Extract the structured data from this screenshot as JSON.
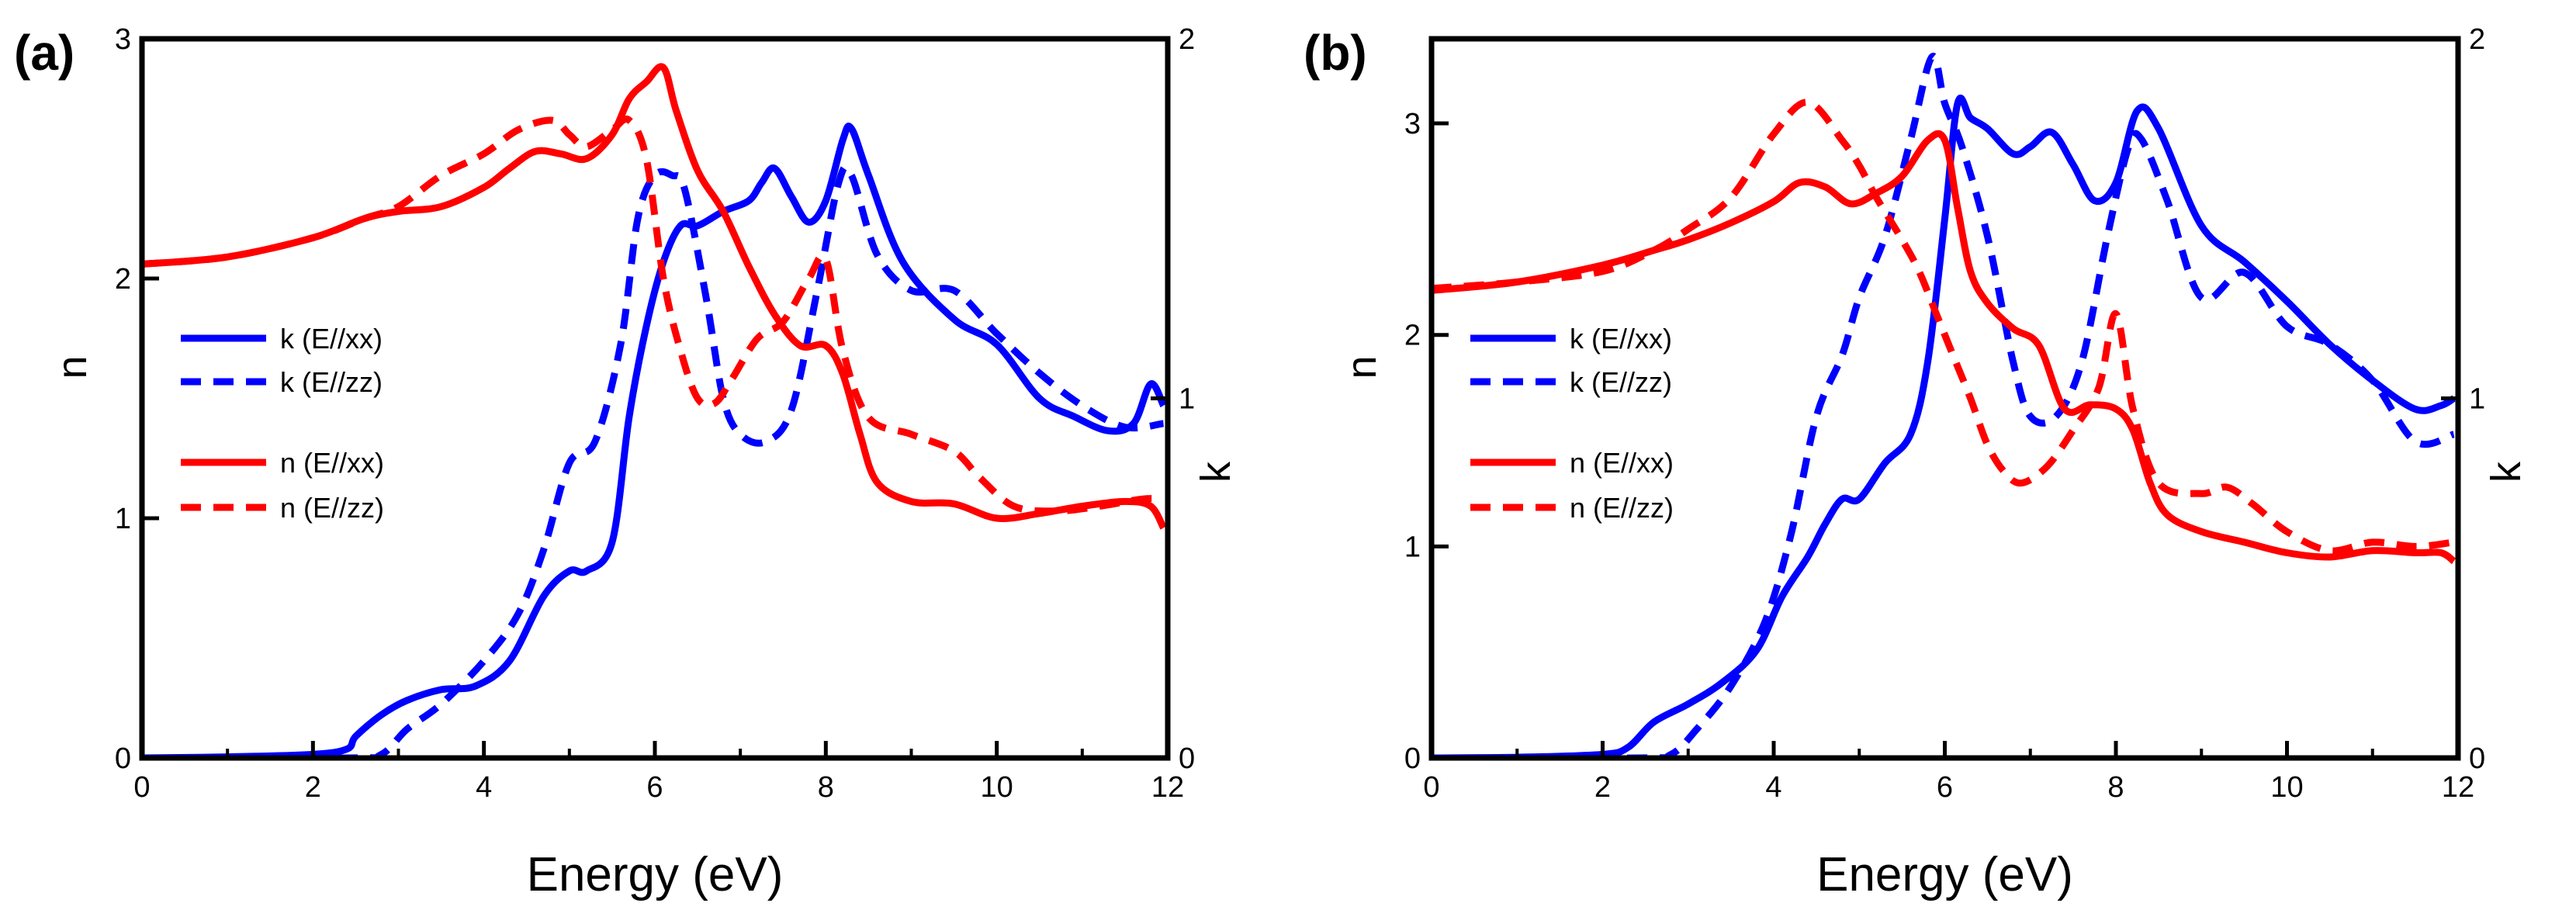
{
  "chart_data": [
    {
      "type": "line",
      "panel_label": "(a)",
      "xlabel": "Energy (eV)",
      "ylabel_left": "n",
      "ylabel_right": "k",
      "xlim": [
        0,
        12
      ],
      "ylim_left": [
        0,
        3
      ],
      "ylim_right": [
        0,
        2
      ],
      "xticks": [
        0,
        2,
        4,
        6,
        8,
        10,
        12
      ],
      "yticks_left": [
        0,
        1,
        2,
        3
      ],
      "yticks_right": [
        0,
        1,
        2
      ],
      "legend_position": "left",
      "series": [
        {
          "name": "k (E//xx)",
          "color": "#0000ff",
          "dash": "solid",
          "axis": "right",
          "x": [
            0,
            1,
            2,
            2.4,
            2.5,
            2.8,
            3.1,
            3.5,
            3.9,
            4.3,
            4.7,
            5.0,
            5.2,
            5.5,
            5.7,
            5.9,
            6.1,
            6.3,
            6.5,
            6.8,
            7.1,
            7.25,
            7.4,
            7.6,
            7.8,
            8.0,
            8.2,
            8.3,
            8.5,
            8.9,
            9.5,
            10.0,
            10.5,
            10.9,
            11.3,
            11.6,
            11.8,
            11.95
          ],
          "y": [
            0,
            0.003,
            0.01,
            0.025,
            0.06,
            0.12,
            0.16,
            0.19,
            0.2,
            0.27,
            0.45,
            0.52,
            0.52,
            0.6,
            0.95,
            1.2,
            1.38,
            1.48,
            1.48,
            1.52,
            1.55,
            1.6,
            1.64,
            1.56,
            1.49,
            1.55,
            1.72,
            1.75,
            1.62,
            1.38,
            1.22,
            1.15,
            1.0,
            0.95,
            0.91,
            0.93,
            1.04,
            0.98
          ]
        },
        {
          "name": "k (E//zz)",
          "color": "#0000ff",
          "dash": "dashed",
          "axis": "right",
          "x": [
            0,
            2.4,
            2.8,
            3.1,
            3.5,
            4.0,
            4.4,
            4.7,
            5.0,
            5.3,
            5.6,
            5.8,
            6.0,
            6.2,
            6.35,
            6.6,
            6.8,
            7.0,
            7.3,
            7.6,
            7.9,
            8.15,
            8.3,
            8.6,
            9.0,
            9.5,
            10.0,
            10.5,
            11.0,
            11.5,
            11.95
          ],
          "y": [
            0,
            0,
            0.01,
            0.08,
            0.15,
            0.27,
            0.4,
            0.58,
            0.82,
            0.88,
            1.15,
            1.5,
            1.62,
            1.62,
            1.58,
            1.28,
            1.0,
            0.9,
            0.88,
            0.97,
            1.3,
            1.6,
            1.62,
            1.4,
            1.3,
            1.3,
            1.18,
            1.07,
            0.98,
            0.92,
            0.93
          ]
        },
        {
          "name": "n (E//xx)",
          "color": "#ff0000",
          "dash": "solid",
          "axis": "left",
          "x": [
            0,
            1,
            2,
            2.6,
            3.0,
            3.5,
            4.0,
            4.3,
            4.6,
            4.9,
            5.2,
            5.5,
            5.7,
            5.9,
            6.1,
            6.25,
            6.5,
            6.8,
            7.1,
            7.4,
            7.7,
            8.0,
            8.2,
            8.4,
            8.6,
            9.0,
            9.5,
            10.0,
            10.5,
            11.0,
            11.5,
            11.8,
            11.95
          ],
          "y": [
            2.06,
            2.09,
            2.17,
            2.25,
            2.28,
            2.3,
            2.38,
            2.46,
            2.53,
            2.52,
            2.5,
            2.6,
            2.75,
            2.82,
            2.88,
            2.7,
            2.45,
            2.28,
            2.05,
            1.85,
            1.72,
            1.72,
            1.6,
            1.35,
            1.15,
            1.07,
            1.06,
            1.0,
            1.02,
            1.05,
            1.07,
            1.05,
            0.96
          ]
        },
        {
          "name": "n (E//zz)",
          "color": "#ff0000",
          "dash": "dashed",
          "axis": "left",
          "x": [
            0,
            1,
            2,
            2.6,
            3.0,
            3.5,
            4.0,
            4.4,
            4.8,
            5.0,
            5.2,
            5.5,
            5.7,
            5.9,
            6.1,
            6.3,
            6.5,
            6.7,
            6.9,
            7.2,
            7.5,
            7.8,
            8.0,
            8.2,
            8.5,
            9.0,
            9.5,
            9.8,
            10.2,
            10.7,
            11.2,
            11.7,
            11.95
          ],
          "y": [
            2.06,
            2.09,
            2.17,
            2.25,
            2.3,
            2.43,
            2.52,
            2.62,
            2.66,
            2.6,
            2.55,
            2.62,
            2.66,
            2.5,
            2.0,
            1.7,
            1.5,
            1.48,
            1.58,
            1.75,
            1.82,
            2.0,
            2.08,
            1.7,
            1.42,
            1.35,
            1.28,
            1.17,
            1.05,
            1.03,
            1.05,
            1.08,
            1.08
          ]
        }
      ]
    },
    {
      "type": "line",
      "panel_label": "(b)",
      "xlabel": "Energy (eV)",
      "ylabel_left": "n",
      "ylabel_right": "k",
      "xlim": [
        0,
        12
      ],
      "ylim_left": [
        0,
        3.4
      ],
      "ylim_right": [
        0,
        2
      ],
      "xticks": [
        0,
        2,
        4,
        6,
        8,
        10,
        12
      ],
      "yticks_left": [
        0,
        1,
        2,
        3
      ],
      "yticks_right": [
        0,
        1,
        2
      ],
      "legend_position": "left",
      "series": [
        {
          "name": "k (E//xx)",
          "color": "#0000ff",
          "dash": "solid",
          "axis": "right",
          "x": [
            0,
            1,
            2,
            2.3,
            2.6,
            3.0,
            3.4,
            3.8,
            4.1,
            4.4,
            4.6,
            4.8,
            5.0,
            5.3,
            5.6,
            5.8,
            6.0,
            6.15,
            6.3,
            6.5,
            6.8,
            7.0,
            7.25,
            7.5,
            7.75,
            8.0,
            8.25,
            8.5,
            9.0,
            9.5,
            10.0,
            10.5,
            11.0,
            11.5,
            11.8,
            11.95
          ],
          "y": [
            0,
            0.002,
            0.01,
            0.03,
            0.1,
            0.15,
            0.21,
            0.3,
            0.45,
            0.56,
            0.65,
            0.72,
            0.72,
            0.82,
            0.9,
            1.1,
            1.5,
            1.82,
            1.78,
            1.75,
            1.68,
            1.7,
            1.74,
            1.65,
            1.55,
            1.6,
            1.8,
            1.75,
            1.48,
            1.38,
            1.27,
            1.15,
            1.05,
            0.97,
            0.98,
            1.0
          ]
        },
        {
          "name": "k (E//zz)",
          "color": "#0000ff",
          "dash": "dashed",
          "axis": "right",
          "x": [
            0,
            2.4,
            2.8,
            3.1,
            3.5,
            3.9,
            4.2,
            4.5,
            4.8,
            5.0,
            5.3,
            5.6,
            5.85,
            6.0,
            6.2,
            6.5,
            6.8,
            7.0,
            7.3,
            7.6,
            7.9,
            8.15,
            8.3,
            8.6,
            9.0,
            9.5,
            10.0,
            10.5,
            11.0,
            11.5,
            11.95
          ],
          "y": [
            0,
            0,
            0.01,
            0.08,
            0.2,
            0.38,
            0.62,
            0.95,
            1.12,
            1.28,
            1.45,
            1.72,
            1.95,
            1.82,
            1.7,
            1.45,
            1.1,
            0.95,
            0.95,
            1.1,
            1.45,
            1.7,
            1.72,
            1.55,
            1.28,
            1.35,
            1.2,
            1.15,
            1.05,
            0.88,
            0.9
          ]
        },
        {
          "name": "n (E//xx)",
          "color": "#ff0000",
          "dash": "solid",
          "axis": "left",
          "x": [
            0,
            1,
            2,
            2.6,
            3.0,
            3.5,
            4.0,
            4.3,
            4.6,
            4.9,
            5.2,
            5.5,
            5.8,
            6.0,
            6.15,
            6.3,
            6.5,
            6.8,
            7.1,
            7.4,
            7.7,
            8.0,
            8.2,
            8.4,
            8.6,
            9.0,
            9.5,
            10.0,
            10.5,
            11.0,
            11.5,
            11.8,
            11.95
          ],
          "y": [
            2.21,
            2.25,
            2.33,
            2.4,
            2.45,
            2.53,
            2.63,
            2.72,
            2.7,
            2.62,
            2.67,
            2.75,
            2.92,
            2.92,
            2.6,
            2.3,
            2.15,
            2.03,
            1.95,
            1.65,
            1.67,
            1.65,
            1.55,
            1.3,
            1.15,
            1.07,
            1.02,
            0.97,
            0.95,
            0.98,
            0.97,
            0.97,
            0.93
          ]
        },
        {
          "name": "n (E//zz)",
          "color": "#ff0000",
          "dash": "dashed",
          "axis": "left",
          "x": [
            0,
            1,
            2,
            2.6,
            3.0,
            3.5,
            4.0,
            4.4,
            4.8,
            5.0,
            5.2,
            5.5,
            5.7,
            5.9,
            6.1,
            6.3,
            6.5,
            6.7,
            6.9,
            7.2,
            7.5,
            7.8,
            8.0,
            8.2,
            8.5,
            9.0,
            9.3,
            9.6,
            10.0,
            10.5,
            11.0,
            11.5,
            11.95
          ],
          "y": [
            2.22,
            2.25,
            2.3,
            2.4,
            2.5,
            2.65,
            2.95,
            3.1,
            2.92,
            2.8,
            2.65,
            2.45,
            2.3,
            2.1,
            1.9,
            1.7,
            1.48,
            1.35,
            1.3,
            1.38,
            1.55,
            1.75,
            2.1,
            1.65,
            1.3,
            1.25,
            1.28,
            1.2,
            1.07,
            0.98,
            1.02,
            1.0,
            1.02
          ]
        }
      ]
    }
  ]
}
